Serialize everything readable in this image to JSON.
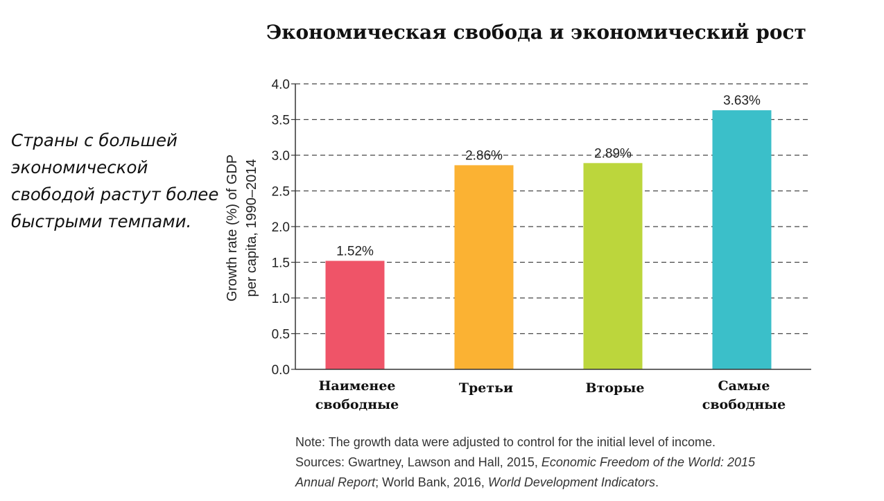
{
  "title": "Экономическая свобода и экономический рост",
  "side_text": "Страны с большей экономической свободой растут более быстрыми темпами.",
  "note": {
    "line1": "Note: The growth data were adjusted to control for the initial level of income.",
    "line2_plain": "Sources: Gwartney, Lawson and Hall, 2015, ",
    "line2_italic": "Economic Freedom of the World: 2015",
    "line3_italic_a": "Annual Report",
    "line3_plain": "; World Bank, 2016, ",
    "line3_italic_b": "World Development Indicators",
    "line3_end": "."
  },
  "chart_data": {
    "type": "bar",
    "categories": [
      [
        "Наименее",
        "свободные"
      ],
      [
        "Третьи"
      ],
      [
        "Вторые"
      ],
      [
        "Самые",
        "свободные"
      ]
    ],
    "values": [
      1.52,
      2.86,
      2.89,
      3.63
    ],
    "value_labels": [
      "1.52%",
      "2.86%",
      "2.89%",
      "3.63%"
    ],
    "colors": [
      "#ef5468",
      "#fbb233",
      "#bcd63c",
      "#3bbfc9"
    ],
    "ylabel_lines": [
      "Growth rate (%) of GDP",
      "per capita, 1990–2014"
    ],
    "ylim": [
      0,
      4.0
    ],
    "yticks": [
      "0.0",
      "0.5",
      "1.0",
      "1.5",
      "2.0",
      "2.5",
      "3.0",
      "3.5",
      "4.0"
    ],
    "grid": true,
    "grid_style": "dashed"
  }
}
